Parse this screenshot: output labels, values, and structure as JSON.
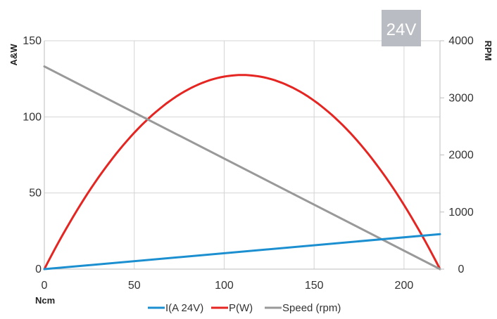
{
  "chart_data": {
    "type": "line",
    "badge": "24V",
    "xlabel": "Ncm",
    "ylabel_left": "A&W",
    "ylabel_right": "RPM",
    "xlim": [
      0,
      220
    ],
    "ylim_left": [
      0,
      150
    ],
    "ylim_right": [
      0,
      4000
    ],
    "x_ticks": [
      0,
      50,
      100,
      150,
      200
    ],
    "y_left_ticks": [
      0,
      50,
      100,
      150
    ],
    "y_right_ticks": [
      0,
      1000,
      2000,
      3000,
      4000
    ],
    "grid": true,
    "legend_position": "bottom-center",
    "series": [
      {
        "name": "I(A 24V)",
        "axis": "left",
        "color": "#1b8fd0",
        "x": [
          0,
          220
        ],
        "values": [
          0,
          23
        ]
      },
      {
        "name": "P(W)",
        "axis": "left",
        "color": "#e52521",
        "x": [
          0,
          20,
          40,
          60,
          80,
          100,
          108,
          120,
          140,
          160,
          180,
          200,
          210,
          220
        ],
        "values": [
          0,
          44,
          80,
          106,
          122,
          127,
          127.5,
          126,
          116,
          97,
          70,
          35,
          14,
          0
        ]
      },
      {
        "name": "Speed (rpm)",
        "axis": "right",
        "color": "#999999",
        "x": [
          0,
          220
        ],
        "values": [
          3550,
          0
        ]
      }
    ]
  }
}
